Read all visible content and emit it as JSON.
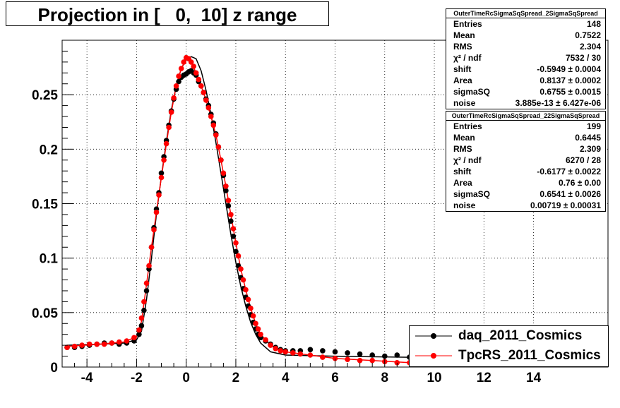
{
  "window": {
    "title": "Projection in [   0,  10] z range"
  },
  "stats": [
    {
      "name": "OuterTimeRcSigmaSqSpread_2SigmaSqSpread",
      "rows": [
        {
          "key": "Entries",
          "value": "148"
        },
        {
          "key": "Mean",
          "value": "0.7522"
        },
        {
          "key": "RMS",
          "value": "2.304"
        },
        {
          "key": "χ² / ndf",
          "value": "7532 / 30"
        },
        {
          "key": "shift",
          "value": "-0.5949 ± 0.0004"
        },
        {
          "key": "Area",
          "value": "0.8137 ± 0.0002"
        },
        {
          "key": "sigmaSQ",
          "value": "0.6755 ± 0.0015"
        },
        {
          "key": "noise",
          "value": "3.885e-13 ± 6.427e-06"
        }
      ]
    },
    {
      "name": "OuterTimeRcSigmaSqSpread_22SigmaSqSpread",
      "rows": [
        {
          "key": "Entries",
          "value": "199"
        },
        {
          "key": "Mean",
          "value": "0.6445"
        },
        {
          "key": "RMS",
          "value": "2.309"
        },
        {
          "key": "χ² / ndf",
          "value": "6270 / 28"
        },
        {
          "key": "shift",
          "value": "-0.6177 ± 0.0022"
        },
        {
          "key": "Area",
          "value": "0.76 ± 0.00"
        },
        {
          "key": "sigmaSQ",
          "value": "0.6541 ± 0.0026"
        },
        {
          "key": "noise",
          "value": "0.00719 ± 0.00031"
        }
      ]
    }
  ],
  "legend": [
    {
      "label": "daq_2011_Cosmics",
      "color": "#000000"
    },
    {
      "label": "TpcRS_2011_Cosmics",
      "color": "#ff0000"
    }
  ],
  "chart_data": {
    "type": "scatter",
    "title": "Projection in [   0,  10] z range",
    "xlim": [
      -5,
      17
    ],
    "ylim": [
      0,
      0.3
    ],
    "x_ticks": [
      -4,
      -2,
      0,
      2,
      4,
      6,
      8,
      10,
      12,
      14
    ],
    "x_tick_labels": [
      "-4",
      "-2",
      "0",
      "2",
      "4",
      "6",
      "8",
      "10",
      "12",
      "14"
    ],
    "y_ticks": [
      0,
      0.05,
      0.1,
      0.15,
      0.2,
      0.25
    ],
    "y_tick_labels": [
      "0",
      "0.05",
      "0.1",
      "0.15",
      "0.2",
      "0.25"
    ],
    "grid": true,
    "series": [
      {
        "name": "daq_2011_Cosmics",
        "color": "#000000",
        "points": [
          [
            -4.8,
            0.018
          ],
          [
            -4.5,
            0.018
          ],
          [
            -4.2,
            0.019
          ],
          [
            -3.9,
            0.02
          ],
          [
            -3.6,
            0.021
          ],
          [
            -3.3,
            0.022
          ],
          [
            -3.0,
            0.022
          ],
          [
            -2.7,
            0.021
          ],
          [
            -2.4,
            0.022
          ],
          [
            -2.1,
            0.024
          ],
          [
            -1.9,
            0.03
          ],
          [
            -1.8,
            0.038
          ],
          [
            -1.7,
            0.052
          ],
          [
            -1.6,
            0.07
          ],
          [
            -1.5,
            0.09
          ],
          [
            -1.4,
            0.11
          ],
          [
            -1.3,
            0.128
          ],
          [
            -1.2,
            0.145
          ],
          [
            -1.1,
            0.16
          ],
          [
            -1.0,
            0.178
          ],
          [
            -0.9,
            0.193
          ],
          [
            -0.8,
            0.208
          ],
          [
            -0.7,
            0.222
          ],
          [
            -0.6,
            0.235
          ],
          [
            -0.5,
            0.246
          ],
          [
            -0.4,
            0.255
          ],
          [
            -0.3,
            0.262
          ],
          [
            -0.2,
            0.266
          ],
          [
            -0.1,
            0.268
          ],
          [
            0.0,
            0.269
          ],
          [
            0.1,
            0.271
          ],
          [
            0.2,
            0.272
          ],
          [
            0.3,
            0.27
          ],
          [
            0.4,
            0.268
          ],
          [
            0.5,
            0.262
          ],
          [
            0.6,
            0.258
          ],
          [
            0.7,
            0.252
          ],
          [
            0.8,
            0.246
          ],
          [
            0.9,
            0.24
          ],
          [
            1.0,
            0.232
          ],
          [
            1.1,
            0.224
          ],
          [
            1.2,
            0.214
          ],
          [
            1.3,
            0.202
          ],
          [
            1.4,
            0.19
          ],
          [
            1.5,
            0.176
          ],
          [
            1.6,
            0.162
          ],
          [
            1.7,
            0.148
          ],
          [
            1.8,
            0.134
          ],
          [
            1.9,
            0.12
          ],
          [
            2.0,
            0.106
          ],
          [
            2.1,
            0.093
          ],
          [
            2.2,
            0.082
          ],
          [
            2.3,
            0.072
          ],
          [
            2.4,
            0.064
          ],
          [
            2.5,
            0.056
          ],
          [
            2.6,
            0.048
          ],
          [
            2.7,
            0.041
          ],
          [
            2.8,
            0.035
          ],
          [
            2.9,
            0.03
          ],
          [
            3.0,
            0.027
          ],
          [
            3.2,
            0.024
          ],
          [
            3.4,
            0.021
          ],
          [
            3.6,
            0.018
          ],
          [
            3.8,
            0.016
          ],
          [
            4.0,
            0.015
          ],
          [
            4.3,
            0.015
          ],
          [
            4.6,
            0.015
          ],
          [
            5.0,
            0.016
          ],
          [
            5.5,
            0.015
          ],
          [
            6.0,
            0.014
          ],
          [
            6.5,
            0.013
          ],
          [
            7.0,
            0.012
          ],
          [
            7.5,
            0.011
          ],
          [
            8.0,
            0.01
          ],
          [
            8.5,
            0.011
          ],
          [
            9.0,
            0.009
          ]
        ],
        "fit": [
          [
            -4.8,
            0.02
          ],
          [
            -3.5,
            0.021
          ],
          [
            -2.5,
            0.022
          ],
          [
            -2.0,
            0.025
          ],
          [
            -1.8,
            0.033
          ],
          [
            -1.6,
            0.062
          ],
          [
            -1.4,
            0.1
          ],
          [
            -1.2,
            0.14
          ],
          [
            -1.0,
            0.175
          ],
          [
            -0.8,
            0.207
          ],
          [
            -0.6,
            0.236
          ],
          [
            -0.4,
            0.258
          ],
          [
            -0.2,
            0.274
          ],
          [
            0.0,
            0.282
          ],
          [
            0.2,
            0.285
          ],
          [
            0.4,
            0.283
          ],
          [
            0.6,
            0.272
          ],
          [
            0.8,
            0.254
          ],
          [
            1.0,
            0.232
          ],
          [
            1.2,
            0.206
          ],
          [
            1.4,
            0.178
          ],
          [
            1.6,
            0.15
          ],
          [
            1.8,
            0.122
          ],
          [
            2.0,
            0.096
          ],
          [
            2.2,
            0.074
          ],
          [
            2.4,
            0.056
          ],
          [
            2.6,
            0.041
          ],
          [
            2.8,
            0.03
          ],
          [
            3.0,
            0.022
          ],
          [
            3.4,
            0.014
          ],
          [
            4.0,
            0.011
          ],
          [
            6.0,
            0.01
          ],
          [
            9.0,
            0.009
          ]
        ]
      },
      {
        "name": "TpcRS_2011_Cosmics",
        "color": "#ff0000",
        "points": [
          [
            -4.8,
            0.018
          ],
          [
            -4.5,
            0.019
          ],
          [
            -4.2,
            0.02
          ],
          [
            -3.9,
            0.021
          ],
          [
            -3.6,
            0.021
          ],
          [
            -3.3,
            0.021
          ],
          [
            -3.0,
            0.022
          ],
          [
            -2.7,
            0.023
          ],
          [
            -2.4,
            0.024
          ],
          [
            -2.1,
            0.027
          ],
          [
            -1.9,
            0.034
          ],
          [
            -1.8,
            0.045
          ],
          [
            -1.7,
            0.06
          ],
          [
            -1.6,
            0.077
          ],
          [
            -1.5,
            0.093
          ],
          [
            -1.4,
            0.11
          ],
          [
            -1.3,
            0.126
          ],
          [
            -1.2,
            0.142
          ],
          [
            -1.1,
            0.158
          ],
          [
            -1.0,
            0.174
          ],
          [
            -0.9,
            0.19
          ],
          [
            -0.8,
            0.205
          ],
          [
            -0.7,
            0.22
          ],
          [
            -0.6,
            0.234
          ],
          [
            -0.5,
            0.247
          ],
          [
            -0.4,
            0.258
          ],
          [
            -0.3,
            0.267
          ],
          [
            -0.2,
            0.274
          ],
          [
            -0.1,
            0.28
          ],
          [
            0.0,
            0.284
          ],
          [
            0.1,
            0.283
          ],
          [
            0.2,
            0.28
          ],
          [
            0.3,
            0.276
          ],
          [
            0.4,
            0.27
          ],
          [
            0.5,
            0.264
          ],
          [
            0.6,
            0.258
          ],
          [
            0.7,
            0.252
          ],
          [
            0.8,
            0.245
          ],
          [
            0.9,
            0.238
          ],
          [
            1.0,
            0.23
          ],
          [
            1.1,
            0.222
          ],
          [
            1.2,
            0.213
          ],
          [
            1.3,
            0.202
          ],
          [
            1.4,
            0.19
          ],
          [
            1.5,
            0.178
          ],
          [
            1.6,
            0.166
          ],
          [
            1.7,
            0.153
          ],
          [
            1.8,
            0.14
          ],
          [
            1.9,
            0.127
          ],
          [
            2.0,
            0.114
          ],
          [
            2.1,
            0.102
          ],
          [
            2.2,
            0.09
          ],
          [
            2.3,
            0.08
          ],
          [
            2.4,
            0.071
          ],
          [
            2.5,
            0.062
          ],
          [
            2.6,
            0.054
          ],
          [
            2.7,
            0.047
          ],
          [
            2.8,
            0.04
          ],
          [
            2.9,
            0.035
          ],
          [
            3.0,
            0.03
          ],
          [
            3.2,
            0.025
          ],
          [
            3.4,
            0.02
          ],
          [
            3.6,
            0.017
          ],
          [
            3.8,
            0.015
          ],
          [
            4.0,
            0.014
          ],
          [
            4.3,
            0.013
          ],
          [
            4.6,
            0.012
          ],
          [
            5.0,
            0.011
          ],
          [
            5.5,
            0.009
          ],
          [
            6.0,
            0.008
          ],
          [
            6.5,
            0.007
          ],
          [
            7.0,
            0.006
          ],
          [
            7.5,
            0.006
          ],
          [
            8.0,
            0.005
          ],
          [
            8.5,
            0.004
          ],
          [
            9.0,
            0.004
          ]
        ],
        "fit": [
          [
            -4.8,
            0.019
          ],
          [
            -3.5,
            0.021
          ],
          [
            -2.5,
            0.023
          ],
          [
            -2.0,
            0.028
          ],
          [
            -1.8,
            0.042
          ],
          [
            -1.6,
            0.076
          ],
          [
            -1.4,
            0.11
          ],
          [
            -1.2,
            0.142
          ],
          [
            -1.0,
            0.174
          ],
          [
            -0.8,
            0.205
          ],
          [
            -0.6,
            0.234
          ],
          [
            -0.4,
            0.258
          ],
          [
            -0.2,
            0.274
          ],
          [
            0.0,
            0.283
          ],
          [
            0.2,
            0.28
          ],
          [
            0.4,
            0.27
          ],
          [
            0.6,
            0.258
          ],
          [
            0.8,
            0.245
          ],
          [
            1.0,
            0.23
          ],
          [
            1.2,
            0.213
          ],
          [
            1.4,
            0.19
          ],
          [
            1.6,
            0.166
          ],
          [
            1.8,
            0.14
          ],
          [
            2.0,
            0.114
          ],
          [
            2.2,
            0.09
          ],
          [
            2.4,
            0.071
          ],
          [
            2.6,
            0.054
          ],
          [
            2.8,
            0.04
          ],
          [
            3.0,
            0.03
          ],
          [
            3.4,
            0.02
          ],
          [
            4.0,
            0.014
          ],
          [
            6.0,
            0.008
          ],
          [
            9.0,
            0.004
          ]
        ]
      }
    ]
  }
}
